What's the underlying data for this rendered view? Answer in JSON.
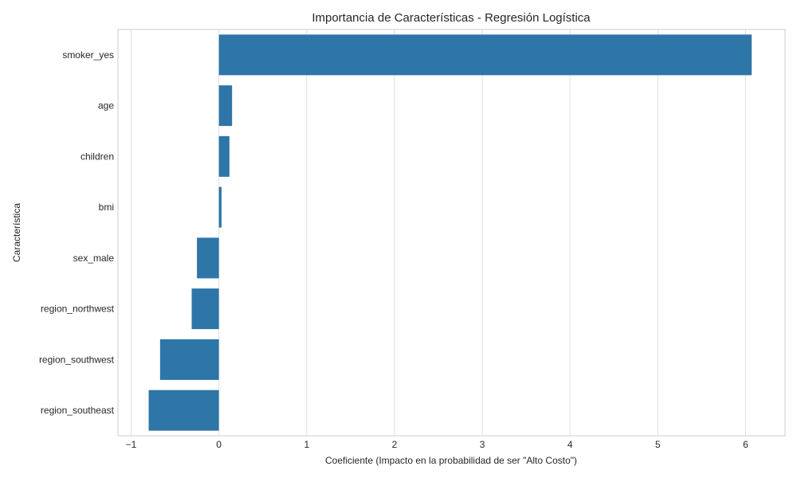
{
  "chart_data": {
    "type": "bar",
    "orientation": "horizontal",
    "title": "Importancia de Características - Regresión Logística",
    "xlabel": "Coeficiente (Impacto en la probabilidad de ser \"Alto Costo\")",
    "ylabel": "Característica",
    "categories": [
      "smoker_yes",
      "age",
      "children",
      "bmi",
      "sex_male",
      "region_northwest",
      "region_southwest",
      "region_southeast"
    ],
    "values": [
      6.07,
      0.15,
      0.12,
      0.03,
      -0.25,
      -0.31,
      -0.67,
      -0.8
    ],
    "xlim": [
      -1.15,
      6.45
    ],
    "xticks": [
      -1,
      0,
      1,
      2,
      3,
      4,
      5,
      6
    ],
    "xtick_labels": [
      "−1",
      "0",
      "1",
      "2",
      "3",
      "4",
      "5",
      "6"
    ],
    "grid": true,
    "bar_color": "#2e75a8",
    "grid_color": "#e0e0e0",
    "spine_color": "#cccccc"
  }
}
